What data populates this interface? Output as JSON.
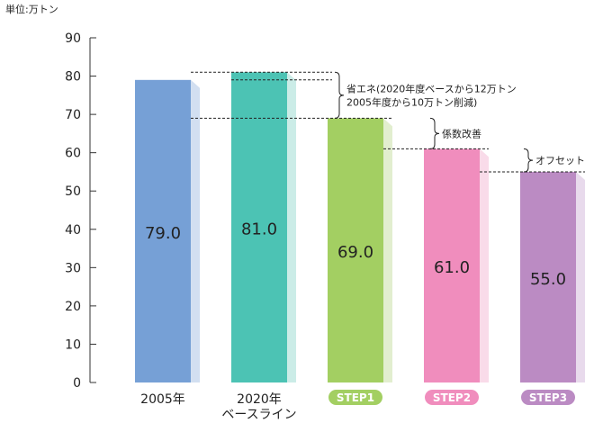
{
  "chart_data": {
    "type": "bar",
    "unit_label": "単位:万トン",
    "categories": [
      {
        "label": "2005年",
        "label2": ""
      },
      {
        "label": "2020年",
        "label2": "ベースライン"
      },
      {
        "label": "STEP1",
        "label2": ""
      },
      {
        "label": "STEP2",
        "label2": ""
      },
      {
        "label": "STEP3",
        "label2": ""
      }
    ],
    "values": [
      79.0,
      81.0,
      69.0,
      61.0,
      55.0
    ],
    "value_labels": [
      "79.0",
      "81.0",
      "69.0",
      "61.0",
      "55.0"
    ],
    "ylim": [
      0,
      90
    ],
    "yticks": [
      0,
      10,
      20,
      30,
      40,
      50,
      60,
      70,
      80,
      90
    ],
    "grid": false,
    "colors": {
      "bars": [
        "#76a0d6",
        "#4cc3b4",
        "#a3cf62",
        "#f08dbd",
        "#bb8bc3"
      ],
      "bar_shadow": [
        "#d2dff1",
        "#cbece7",
        "#e2eecf",
        "#f9dbe9",
        "#e8daec"
      ],
      "step_badges": [
        "#a3cf62",
        "#f08dbd",
        "#bb8bc3"
      ]
    },
    "annotations": [
      {
        "from": 81,
        "to": 69,
        "lines": [
          "省エネ(2020年度ベースから12万トン",
          "2005年度から10万トン削減)"
        ]
      },
      {
        "from": 69,
        "to": 61,
        "lines": [
          "係数改善"
        ]
      },
      {
        "from": 61,
        "to": 55,
        "lines": [
          "オフセット"
        ]
      }
    ]
  }
}
